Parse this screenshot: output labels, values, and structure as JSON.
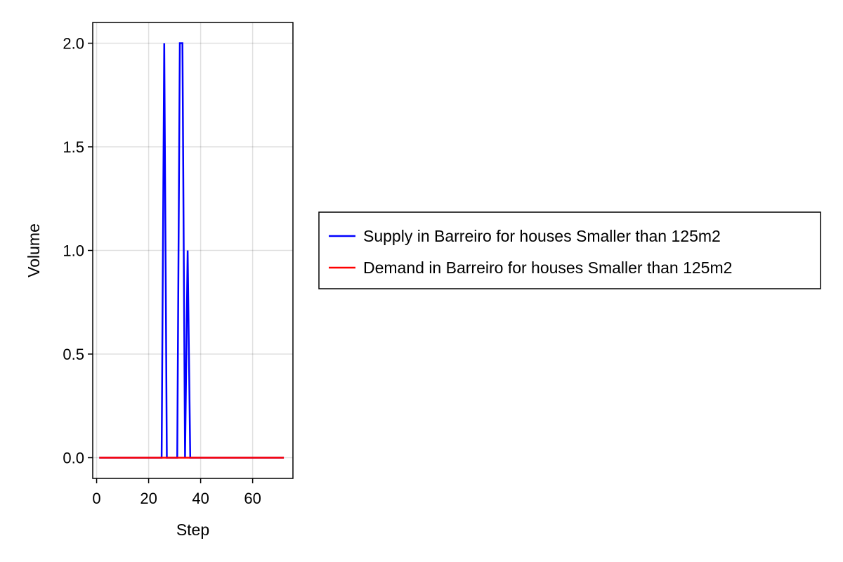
{
  "chart_data": {
    "type": "line",
    "title": "",
    "xlabel": "Step",
    "ylabel": "Volume",
    "xlim": [
      -1.5,
      75.5
    ],
    "ylim": [
      -0.1,
      2.1
    ],
    "xticks": [
      0,
      20,
      40,
      60
    ],
    "xtick_labels": [
      "0",
      "20",
      "40",
      "60"
    ],
    "yticks": [
      0.0,
      0.5,
      1.0,
      1.5,
      2.0
    ],
    "ytick_labels": [
      "0.0",
      "0.5",
      "1.0",
      "1.5",
      "2.0"
    ],
    "grid": true,
    "legend_position": "right, outside plot",
    "x": [
      1,
      2,
      3,
      4,
      5,
      6,
      7,
      8,
      9,
      10,
      11,
      12,
      13,
      14,
      15,
      16,
      17,
      18,
      19,
      20,
      21,
      22,
      23,
      24,
      25,
      26,
      27,
      28,
      29,
      30,
      31,
      32,
      33,
      34,
      35,
      36,
      37,
      38,
      39,
      40,
      41,
      42,
      43,
      44,
      45,
      46,
      47,
      48,
      49,
      50,
      51,
      52,
      53,
      54,
      55,
      56,
      57,
      58,
      59,
      60,
      61,
      62,
      63,
      64,
      65,
      66,
      67,
      68,
      69,
      70,
      71,
      72
    ],
    "series": [
      {
        "name": "Supply in Barreiro for houses Smaller than 125m2",
        "color": "#0000ff",
        "values": [
          0,
          0,
          0,
          0,
          0,
          0,
          0,
          0,
          0,
          0,
          0,
          0,
          0,
          0,
          0,
          0,
          0,
          0,
          0,
          0,
          0,
          0,
          0,
          0,
          0,
          2,
          0,
          0,
          0,
          0,
          0,
          2,
          2,
          0,
          1,
          0,
          0,
          0,
          0,
          0,
          0,
          0,
          0,
          0,
          0,
          0,
          0,
          0,
          0,
          0,
          0,
          0,
          0,
          0,
          0,
          0,
          0,
          0,
          0,
          0,
          0,
          0,
          0,
          0,
          0,
          0,
          0,
          0,
          0,
          0,
          0,
          0
        ]
      },
      {
        "name": "Demand in Barreiro for houses Smaller than 125m2",
        "color": "#ff0000",
        "values": [
          0,
          0,
          0,
          0,
          0,
          0,
          0,
          0,
          0,
          0,
          0,
          0,
          0,
          0,
          0,
          0,
          0,
          0,
          0,
          0,
          0,
          0,
          0,
          0,
          0,
          0,
          0,
          0,
          0,
          0,
          0,
          0,
          0,
          0,
          0,
          0,
          0,
          0,
          0,
          0,
          0,
          0,
          0,
          0,
          0,
          0,
          0,
          0,
          0,
          0,
          0,
          0,
          0,
          0,
          0,
          0,
          0,
          0,
          0,
          0,
          0,
          0,
          0,
          0,
          0,
          0,
          0,
          0,
          0,
          0,
          0,
          0
        ]
      }
    ]
  }
}
